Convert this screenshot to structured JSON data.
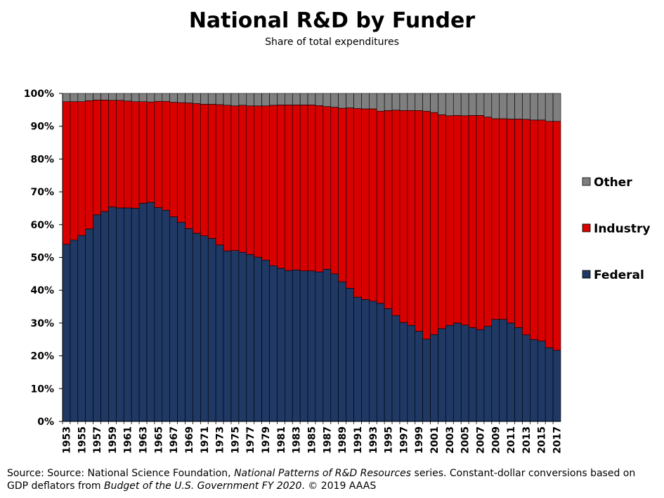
{
  "chart_data": {
    "type": "bar",
    "stacked": true,
    "title": "National R&D by Funder",
    "subtitle": "Share of total expenditures",
    "ylim": [
      0,
      100
    ],
    "yticks": [
      "0%",
      "10%",
      "20%",
      "30%",
      "40%",
      "50%",
      "60%",
      "70%",
      "80%",
      "90%",
      "100%"
    ],
    "years": [
      1953,
      1954,
      1955,
      1956,
      1957,
      1958,
      1959,
      1960,
      1961,
      1962,
      1963,
      1964,
      1965,
      1966,
      1967,
      1968,
      1969,
      1970,
      1971,
      1972,
      1973,
      1974,
      1975,
      1976,
      1977,
      1978,
      1979,
      1980,
      1981,
      1982,
      1983,
      1984,
      1985,
      1986,
      1987,
      1988,
      1989,
      1990,
      1991,
      1992,
      1993,
      1994,
      1995,
      1996,
      1997,
      1998,
      1999,
      2000,
      2001,
      2002,
      2003,
      2004,
      2005,
      2006,
      2007,
      2008,
      2009,
      2010,
      2011,
      2012,
      2013,
      2014,
      2015,
      2016,
      2017
    ],
    "x_tick_labels": [
      "1953",
      "1955",
      "1957",
      "1959",
      "1961",
      "1963",
      "1965",
      "1967",
      "1969",
      "1971",
      "1973",
      "1975",
      "1977",
      "1979",
      "1981",
      "1983",
      "1985",
      "1987",
      "1989",
      "1991",
      "1993",
      "1995",
      "1997",
      "1999",
      "2001",
      "2003",
      "2005",
      "2007",
      "2009",
      "2011",
      "2013",
      "2015",
      "2017"
    ],
    "series": [
      {
        "name": "Federal",
        "color": "#1f3864",
        "values": [
          54.0,
          55.3,
          56.7,
          58.7,
          63.0,
          64.0,
          65.4,
          65.1,
          65.1,
          65.0,
          66.5,
          66.8,
          65.2,
          64.4,
          62.4,
          60.7,
          58.8,
          57.4,
          56.6,
          55.8,
          53.8,
          52.0,
          52.1,
          51.6,
          50.9,
          50.1,
          49.2,
          47.5,
          46.7,
          46.0,
          46.2,
          45.9,
          45.9,
          45.6,
          46.4,
          45.0,
          42.6,
          40.6,
          37.9,
          37.2,
          36.7,
          36.0,
          34.4,
          32.3,
          30.2,
          29.3,
          27.5,
          25.1,
          26.5,
          28.3,
          29.3,
          30.0,
          29.4,
          28.6,
          28.0,
          29.0,
          31.1,
          31.1,
          30.0,
          28.6,
          26.4,
          25.0,
          24.5,
          22.5,
          21.7
        ]
      },
      {
        "name": "Industry",
        "color": "#d90000",
        "values": [
          43.5,
          42.2,
          40.8,
          39.1,
          35.0,
          34.0,
          32.5,
          32.8,
          32.6,
          32.5,
          31.0,
          30.6,
          32.4,
          33.2,
          34.9,
          36.5,
          38.3,
          39.5,
          40.1,
          40.9,
          42.8,
          44.4,
          44.1,
          44.8,
          45.3,
          46.1,
          47.0,
          48.9,
          49.8,
          50.5,
          50.3,
          50.6,
          50.6,
          50.7,
          49.6,
          50.8,
          52.9,
          55.0,
          57.5,
          58.1,
          58.6,
          58.6,
          60.4,
          62.6,
          64.6,
          65.5,
          67.3,
          69.5,
          67.7,
          65.2,
          63.9,
          63.3,
          63.8,
          64.7,
          65.3,
          63.8,
          61.2,
          61.2,
          62.2,
          63.6,
          65.7,
          66.9,
          67.4,
          69.0,
          69.8
        ]
      },
      {
        "name": "Other",
        "color": "#7f7f7f",
        "values": [
          2.5,
          2.5,
          2.5,
          2.2,
          2.0,
          2.0,
          2.1,
          2.1,
          2.3,
          2.5,
          2.5,
          2.6,
          2.4,
          2.4,
          2.7,
          2.8,
          2.9,
          3.1,
          3.3,
          3.3,
          3.4,
          3.6,
          3.8,
          3.6,
          3.8,
          3.8,
          3.8,
          3.6,
          3.5,
          3.5,
          3.5,
          3.5,
          3.5,
          3.7,
          4.0,
          4.2,
          4.5,
          4.4,
          4.6,
          4.7,
          4.7,
          5.4,
          5.2,
          5.1,
          5.2,
          5.2,
          5.2,
          5.4,
          5.8,
          6.5,
          6.8,
          6.7,
          6.8,
          6.7,
          6.7,
          7.2,
          7.7,
          7.7,
          7.8,
          7.8,
          7.9,
          8.1,
          8.1,
          8.5,
          8.5
        ]
      }
    ],
    "legend": [
      "Other",
      "Industry",
      "Federal"
    ],
    "legend_position": "right"
  },
  "source": {
    "line1_pre": "Source: Source: National Science Foundation, ",
    "line1_italic": "National Patterns of R&D Resources",
    "line1_post": " series. Constant-dollar conversions based on",
    "line2_pre": "GDP deflators from ",
    "line2_italic": "Budget of the U.S. Government FY 2020",
    "line2_post": ". © 2019 AAAS"
  }
}
